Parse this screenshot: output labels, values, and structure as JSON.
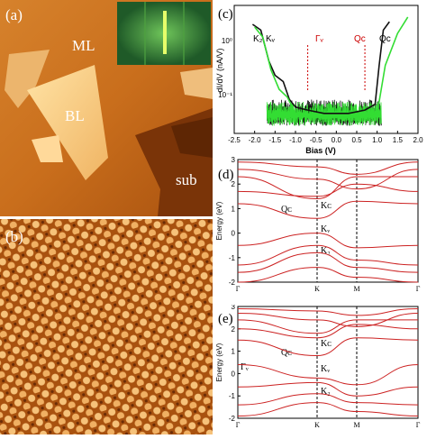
{
  "panels": {
    "a": {
      "label": "(a)",
      "regions": [
        "ML",
        "BL",
        "sub"
      ]
    },
    "b": {
      "label": "(b)"
    },
    "c": {
      "label": "(c)"
    },
    "d": {
      "label": "(d)"
    },
    "e": {
      "label": "(e)"
    }
  },
  "chart_data": [
    {
      "type": "line",
      "panel": "c",
      "xlabel": "Bias (V)",
      "ylabel": "dI/dV (nA/V)",
      "xlim": [
        -2.5,
        2.0
      ],
      "y_scale": "log",
      "x_ticks": [
        "-2.5",
        "-2.0",
        "-1.5",
        "-1.0",
        "-0.5",
        "0.0",
        "0.5",
        "1.0",
        "1.5",
        "2.0"
      ],
      "y_ticks": [
        "10⁰",
        "10⁻¹"
      ],
      "annotations": [
        "K₂",
        "Kᵥ",
        "Γᵥ",
        "Qᴄ",
        "Qᴄ"
      ],
      "colors": {
        "black_curve": "#111111",
        "green_curve": "#33dd33",
        "markers": "#cc0000"
      },
      "series": [
        {
          "x": [
            -2.05,
            -1.85,
            -1.65,
            -1.5,
            -1.3,
            -1.15,
            -1.0,
            -0.7,
            -0.3,
            0.0,
            0.3,
            0.7,
            0.95,
            1.05,
            1.15,
            1.3
          ],
          "y": [
            1.3,
            1.1,
            0.45,
            0.3,
            0.25,
            0.15,
            0.12,
            0.11,
            0.1,
            0.1,
            0.1,
            0.11,
            0.13,
            0.4,
            1.1,
            1.4
          ]
        },
        {
          "x": [
            -2.0,
            -1.8,
            -1.6,
            -1.4,
            -1.2,
            -1.0,
            -0.7,
            -0.3,
            0.0,
            0.3,
            0.7,
            1.0,
            1.2,
            1.5,
            1.75
          ],
          "y": [
            1.2,
            0.9,
            0.35,
            0.2,
            0.16,
            0.1,
            0.09,
            0.09,
            0.09,
            0.09,
            0.09,
            0.1,
            0.4,
            1.0,
            1.6
          ]
        }
      ]
    },
    {
      "type": "line",
      "panel": "d",
      "ylabel": "Energy (eV)",
      "ylim": [
        -2,
        3
      ],
      "y_ticks": [
        "3",
        "2",
        "1",
        "0",
        "-1",
        "-2"
      ],
      "x_ticks": [
        "Γ",
        "K",
        "M",
        "Γ"
      ],
      "annotations": [
        "Qᴄ",
        "Kᴄ",
        "Kᵥ",
        "K₂"
      ]
    },
    {
      "type": "line",
      "panel": "e",
      "ylabel": "Energy (eV)",
      "ylim": [
        -2,
        3
      ],
      "y_ticks": [
        "3",
        "2",
        "1",
        "0",
        "-1",
        "-2"
      ],
      "x_ticks": [
        "Γ",
        "K",
        "M",
        "Γ"
      ],
      "annotations": [
        "Qᴄ",
        "Kᴄ",
        "Γᵥ",
        "Kᵥ",
        "K₂"
      ]
    }
  ]
}
